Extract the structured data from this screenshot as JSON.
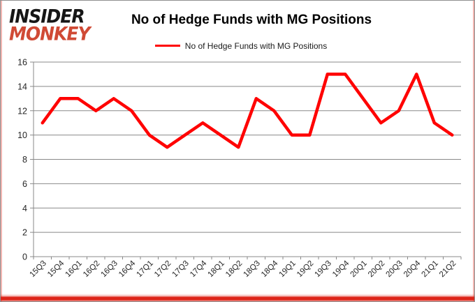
{
  "header": {
    "logo": {
      "line1": "INSIDER",
      "line2": "MONKEY"
    },
    "title": "No of Hedge Funds with MG Positions",
    "legend": {
      "label": "No of Hedge Funds with MG Positions",
      "swatch_color": "#ff0000"
    }
  },
  "colors": {
    "brand_black": "#161616",
    "brand_red": "#d04a35",
    "series_red": "#ff0000",
    "grid_gray": "#898989",
    "axis_text": "#262626",
    "frame_bottom_red": "#dd2418",
    "frame_side_pink": "#f3b7b2"
  },
  "chart_data": {
    "type": "line",
    "title": "No of Hedge Funds with MG Positions",
    "categories": [
      "15Q3",
      "15Q4",
      "16Q1",
      "16Q2",
      "16Q3",
      "16Q4",
      "17Q1",
      "17Q2",
      "17Q3",
      "17Q4",
      "18Q1",
      "18Q2",
      "18Q3",
      "18Q4",
      "19Q1",
      "19Q2",
      "19Q3",
      "19Q4",
      "20Q1",
      "20Q2",
      "20Q3",
      "20Q4",
      "21Q1",
      "21Q2"
    ],
    "series": [
      {
        "name": "No of Hedge Funds with MG Positions",
        "color": "#ff0000",
        "values": [
          11,
          13,
          13,
          12,
          13,
          12,
          10,
          9,
          10,
          11,
          10,
          9,
          13,
          12,
          10,
          10,
          15,
          15,
          13,
          11,
          12,
          15,
          11,
          10
        ]
      }
    ],
    "xlabel": "",
    "ylabel": "",
    "ylim": [
      0,
      16
    ],
    "ytick_step": 2,
    "grid": "horizontal",
    "legend_position": "top"
  }
}
